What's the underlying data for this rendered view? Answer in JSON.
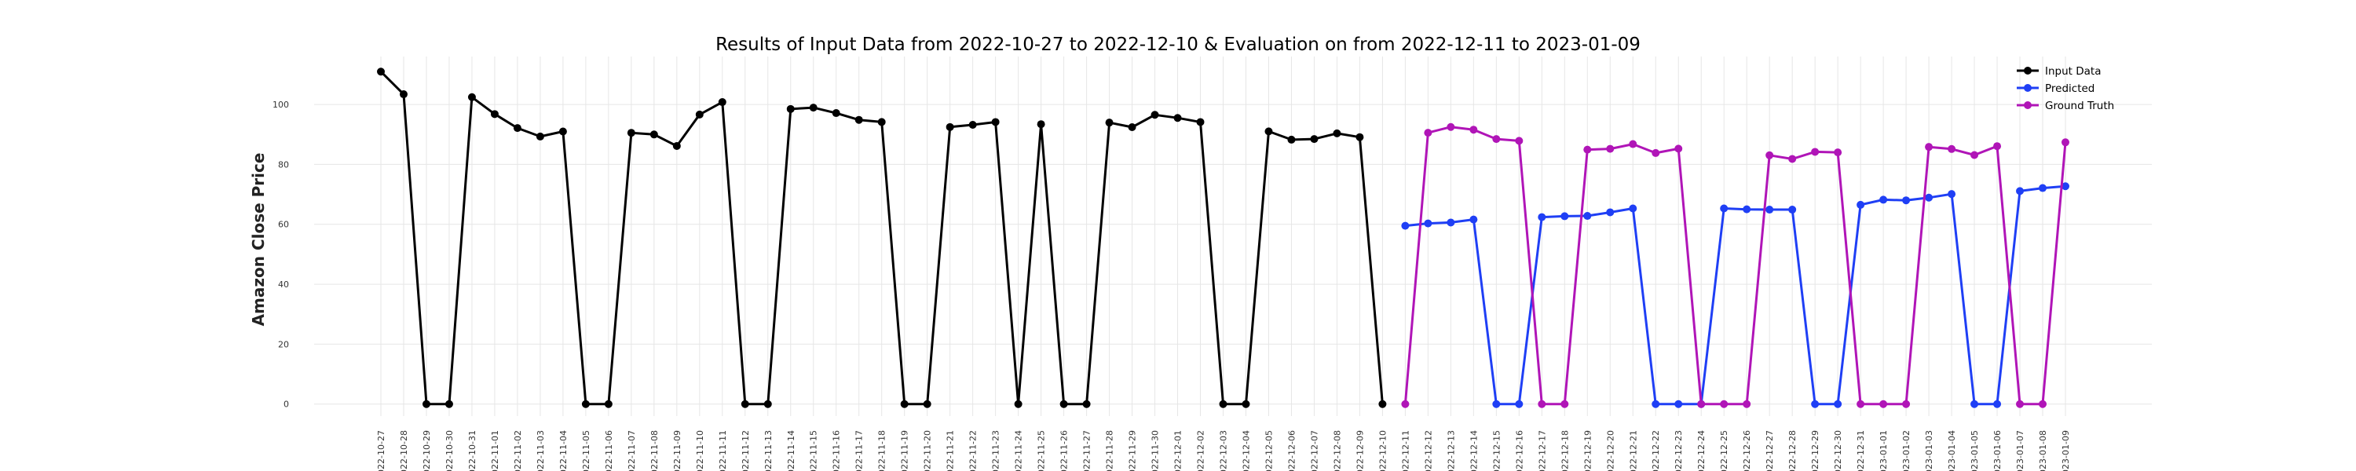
{
  "chart_data": {
    "type": "line",
    "title": "Results of Input Data from 2022-10-27 to 2022-12-10 & Evaluation on from 2022-12-11 to 2023-01-09",
    "xlabel": "",
    "ylabel": "Amazon Close Price",
    "ylim": [
      -4,
      116
    ],
    "yticks": [
      0,
      20,
      40,
      60,
      80,
      100
    ],
    "grid": true,
    "legend_position": "top-right",
    "x": [
      "2022-10-27",
      "2022-10-28",
      "2022-10-29",
      "2022-10-30",
      "2022-10-31",
      "2022-11-01",
      "2022-11-02",
      "2022-11-03",
      "2022-11-04",
      "2022-11-05",
      "2022-11-06",
      "2022-11-07",
      "2022-11-08",
      "2022-11-09",
      "2022-11-10",
      "2022-11-11",
      "2022-11-12",
      "2022-11-13",
      "2022-11-14",
      "2022-11-15",
      "2022-11-16",
      "2022-11-17",
      "2022-11-18",
      "2022-11-19",
      "2022-11-20",
      "2022-11-21",
      "2022-11-22",
      "2022-11-23",
      "2022-11-24",
      "2022-11-25",
      "2022-11-26",
      "2022-11-27",
      "2022-11-28",
      "2022-11-29",
      "2022-11-30",
      "2022-12-01",
      "2022-12-02",
      "2022-12-03",
      "2022-12-04",
      "2022-12-05",
      "2022-12-06",
      "2022-12-07",
      "2022-12-08",
      "2022-12-09",
      "2022-12-10",
      "2022-12-11",
      "2022-12-12",
      "2022-12-13",
      "2022-12-14",
      "2022-12-15",
      "2022-12-16",
      "2022-12-17",
      "2022-12-18",
      "2022-12-19",
      "2022-12-20",
      "2022-12-21",
      "2022-12-22",
      "2022-12-23",
      "2022-12-24",
      "2022-12-25",
      "2022-12-26",
      "2022-12-27",
      "2022-12-28",
      "2022-12-29",
      "2022-12-30",
      "2022-12-31",
      "2023-01-01",
      "2023-01-02",
      "2023-01-03",
      "2023-01-04",
      "2023-01-05",
      "2023-01-06",
      "2023-01-07",
      "2023-01-08",
      "2023-01-09"
    ],
    "xtick_labels": [
      "022-10-27",
      "022-10-28",
      "022-10-29",
      "022-10-30",
      "022-10-31",
      "022-11-01",
      "022-11-02",
      "022-11-03",
      "022-11-04",
      "022-11-05",
      "022-11-06",
      "022-11-07",
      "022-11-08",
      "022-11-09",
      "022-11-10",
      "022-11-11",
      "022-11-12",
      "022-11-13",
      "022-11-14",
      "022-11-15",
      "022-11-16",
      "022-11-17",
      "022-11-18",
      "022-11-19",
      "022-11-20",
      "022-11-21",
      "022-11-22",
      "022-11-23",
      "022-11-24",
      "022-11-25",
      "022-11-26",
      "022-11-27",
      "022-11-28",
      "022-11-29",
      "022-11-30",
      "022-12-01",
      "022-12-02",
      "022-12-03",
      "022-12-04",
      "022-12-05",
      "022-12-06",
      "022-12-07",
      "022-12-08",
      "022-12-09",
      "022-12-10",
      "022-12-11",
      "022-12-12",
      "022-12-13",
      "022-12-14",
      "022-12-15",
      "022-12-16",
      "022-12-17",
      "022-12-18",
      "022-12-19",
      "022-12-20",
      "022-12-21",
      "022-12-22",
      "022-12-23",
      "022-12-24",
      "022-12-25",
      "022-12-26",
      "022-12-27",
      "022-12-28",
      "022-12-29",
      "022-12-30",
      "022-12-31",
      "023-01-01",
      "023-01-02",
      "023-01-03",
      "023-01-04",
      "023-01-05",
      "023-01-06",
      "023-01-07",
      "023-01-08",
      "023-01-09"
    ],
    "series": [
      {
        "name": "Input Data",
        "color": "#000000",
        "x": [
          "2022-10-27",
          "2022-10-28",
          "2022-10-29",
          "2022-10-30",
          "2022-10-31",
          "2022-11-01",
          "2022-11-02",
          "2022-11-03",
          "2022-11-04",
          "2022-11-05",
          "2022-11-06",
          "2022-11-07",
          "2022-11-08",
          "2022-11-09",
          "2022-11-10",
          "2022-11-11",
          "2022-11-12",
          "2022-11-13",
          "2022-11-14",
          "2022-11-15",
          "2022-11-16",
          "2022-11-17",
          "2022-11-18",
          "2022-11-19",
          "2022-11-20",
          "2022-11-21",
          "2022-11-22",
          "2022-11-23",
          "2022-11-24",
          "2022-11-25",
          "2022-11-26",
          "2022-11-27",
          "2022-11-28",
          "2022-11-29",
          "2022-11-30",
          "2022-12-01",
          "2022-12-02",
          "2022-12-03",
          "2022-12-04",
          "2022-12-05",
          "2022-12-06",
          "2022-12-07",
          "2022-12-08",
          "2022-12-09",
          "2022-12-10"
        ],
        "values": [
          110.96,
          103.41,
          0,
          0,
          102.44,
          96.79,
          92.12,
          89.3,
          90.98,
          0,
          0,
          90.53,
          89.98,
          86.14,
          96.63,
          100.79,
          0,
          0,
          98.49,
          98.94,
          97.12,
          94.85,
          94.14,
          0,
          0,
          92.46,
          93.2,
          94.13,
          0,
          93.41,
          0,
          0,
          93.95,
          92.42,
          96.54,
          95.5,
          94.13,
          0,
          0,
          91.01,
          88.25,
          88.46,
          90.35,
          89.09,
          0
        ]
      },
      {
        "name": "Predicted",
        "color": "#1f3ff5",
        "x": [
          "2022-12-11",
          "2022-12-12",
          "2022-12-13",
          "2022-12-14",
          "2022-12-15",
          "2022-12-16",
          "2022-12-17",
          "2022-12-18",
          "2022-12-19",
          "2022-12-20",
          "2022-12-21",
          "2022-12-22",
          "2022-12-23",
          "2022-12-24",
          "2022-12-25",
          "2022-12-26",
          "2022-12-27",
          "2022-12-28",
          "2022-12-29",
          "2022-12-30",
          "2022-12-31",
          "2023-01-01",
          "2023-01-02",
          "2023-01-03",
          "2023-01-04",
          "2023-01-05",
          "2023-01-06",
          "2023-01-07",
          "2023-01-08",
          "2023-01-09"
        ],
        "values": [
          59.5,
          60.3,
          60.6,
          61.6,
          0,
          0,
          62.4,
          62.7,
          62.8,
          64.0,
          65.3,
          0,
          0,
          0,
          65.3,
          65.0,
          64.9,
          64.9,
          0,
          0,
          66.5,
          68.2,
          68.0,
          68.9,
          70.1,
          0,
          0,
          71.1,
          72.1,
          72.7
        ]
      },
      {
        "name": "Ground Truth",
        "color": "#b015b7",
        "x": [
          "2022-12-11",
          "2022-12-12",
          "2022-12-13",
          "2022-12-14",
          "2022-12-15",
          "2022-12-16",
          "2022-12-17",
          "2022-12-18",
          "2022-12-19",
          "2022-12-20",
          "2022-12-21",
          "2022-12-22",
          "2022-12-23",
          "2022-12-24",
          "2022-12-25",
          "2022-12-26",
          "2022-12-27",
          "2022-12-28",
          "2022-12-29",
          "2022-12-30",
          "2022-12-31",
          "2023-01-01",
          "2023-01-02",
          "2023-01-03",
          "2023-01-04",
          "2023-01-05",
          "2023-01-06",
          "2023-01-07",
          "2023-01-08",
          "2023-01-09"
        ],
        "values": [
          0,
          90.55,
          92.49,
          91.58,
          88.45,
          87.86,
          0,
          0,
          84.92,
          85.19,
          86.77,
          83.79,
          85.25,
          0,
          0,
          0,
          83.04,
          81.82,
          84.18,
          84.0,
          0,
          0,
          0,
          85.82,
          85.14,
          83.12,
          86.08,
          0,
          0,
          87.36
        ]
      }
    ]
  }
}
